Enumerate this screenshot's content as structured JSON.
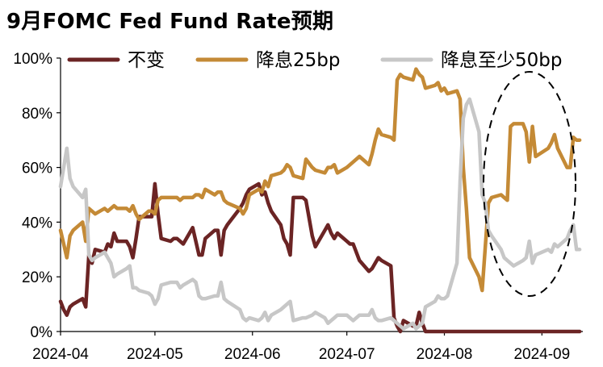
{
  "title": "9月FOMC Fed Fund Rate预期",
  "chart_data": {
    "type": "line",
    "title": "9月FOMC Fed Fund Rate预期",
    "xlabel": "",
    "ylabel": "",
    "x_ticks": [
      "2024-04",
      "2024-05",
      "2024-06",
      "2024-07",
      "2024-08",
      "2024-09"
    ],
    "x_range": [
      "2024-04-01",
      "2024-09-14"
    ],
    "y_ticks": [
      "0%",
      "20%",
      "40%",
      "60%",
      "80%",
      "100%"
    ],
    "ylim": [
      0,
      100
    ],
    "legend_position": "top",
    "dates": [
      "2024-04-01",
      "2024-04-02",
      "2024-04-03",
      "2024-04-04",
      "2024-04-05",
      "2024-04-08",
      "2024-04-09",
      "2024-04-10",
      "2024-04-11",
      "2024-04-12",
      "2024-04-15",
      "2024-04-16",
      "2024-04-17",
      "2024-04-18",
      "2024-04-19",
      "2024-04-22",
      "2024-04-23",
      "2024-04-24",
      "2024-04-25",
      "2024-04-26",
      "2024-04-29",
      "2024-04-30",
      "2024-05-01",
      "2024-05-02",
      "2024-05-03",
      "2024-05-06",
      "2024-05-07",
      "2024-05-08",
      "2024-05-09",
      "2024-05-10",
      "2024-05-13",
      "2024-05-14",
      "2024-05-15",
      "2024-05-16",
      "2024-05-17",
      "2024-05-20",
      "2024-05-21",
      "2024-05-22",
      "2024-05-23",
      "2024-05-24",
      "2024-05-28",
      "2024-05-29",
      "2024-05-30",
      "2024-05-31",
      "2024-06-03",
      "2024-06-04",
      "2024-06-05",
      "2024-06-06",
      "2024-06-07",
      "2024-06-10",
      "2024-06-11",
      "2024-06-12",
      "2024-06-13",
      "2024-06-14",
      "2024-06-17",
      "2024-06-18",
      "2024-06-20",
      "2024-06-21",
      "2024-06-24",
      "2024-06-25",
      "2024-06-26",
      "2024-06-27",
      "2024-06-28",
      "2024-07-01",
      "2024-07-02",
      "2024-07-03",
      "2024-07-05",
      "2024-07-08",
      "2024-07-09",
      "2024-07-10",
      "2024-07-11",
      "2024-07-12",
      "2024-07-15",
      "2024-07-16",
      "2024-07-17",
      "2024-07-18",
      "2024-07-19",
      "2024-07-22",
      "2024-07-23",
      "2024-07-24",
      "2024-07-25",
      "2024-07-26",
      "2024-07-29",
      "2024-07-30",
      "2024-07-31",
      "2024-08-01",
      "2024-08-02",
      "2024-08-05",
      "2024-08-06",
      "2024-08-07",
      "2024-08-08",
      "2024-08-09",
      "2024-08-12",
      "2024-08-13",
      "2024-08-14",
      "2024-08-15",
      "2024-08-16",
      "2024-08-19",
      "2024-08-20",
      "2024-08-21",
      "2024-08-22",
      "2024-08-23",
      "2024-08-26",
      "2024-08-27",
      "2024-08-28",
      "2024-08-29",
      "2024-08-30",
      "2024-09-03",
      "2024-09-04",
      "2024-09-05",
      "2024-09-06",
      "2024-09-09",
      "2024-09-10",
      "2024-09-11",
      "2024-09-12",
      "2024-09-13"
    ],
    "series": [
      {
        "name": "不变",
        "color": "#6b2424",
        "values": [
          11,
          8,
          6,
          9,
          10,
          12,
          9,
          28,
          25,
          30,
          29,
          32,
          31,
          36,
          33,
          33,
          31,
          27,
          34,
          42,
          42,
          42,
          54,
          43,
          34,
          33,
          34,
          34,
          33,
          32,
          38,
          33,
          28,
          28,
          34,
          37,
          37,
          28,
          37,
          39,
          45,
          47,
          50,
          52,
          54,
          50,
          51,
          47,
          44,
          39,
          34,
          32,
          28,
          49,
          49,
          48,
          35,
          31,
          37,
          39,
          36,
          34,
          36,
          33,
          32,
          32,
          26,
          22,
          23,
          25,
          27,
          26,
          24,
          5,
          2,
          0,
          4,
          2,
          2,
          7,
          3,
          0,
          0,
          0,
          0,
          0,
          0,
          0,
          0,
          0,
          0,
          0,
          0,
          0,
          0,
          0,
          0,
          0,
          0,
          0,
          0,
          0,
          0,
          0,
          0,
          0,
          0,
          0,
          0,
          0,
          0,
          0,
          0,
          0,
          0,
          0
        ]
      },
      {
        "name": "降息25bp",
        "color": "#c48a36",
        "values": [
          37,
          32,
          27,
          35,
          37,
          40,
          33,
          45,
          44,
          43,
          45,
          44,
          45,
          46,
          45,
          45,
          44,
          46,
          43,
          41,
          44,
          44,
          43,
          48,
          49,
          49,
          49,
          49,
          48,
          49,
          49,
          50,
          50,
          49,
          52,
          50,
          51,
          51,
          48,
          47,
          45,
          43,
          45,
          50,
          52,
          51,
          55,
          53,
          57,
          58,
          59,
          61,
          60,
          57,
          56,
          63,
          60,
          59,
          58,
          60,
          60,
          61,
          58,
          60,
          61,
          62,
          64,
          61,
          65,
          70,
          74,
          72,
          71,
          70,
          92,
          94,
          93,
          92,
          96,
          94,
          93,
          89,
          90,
          91,
          88,
          89,
          87,
          88,
          85,
          60,
          45,
          27,
          20,
          15,
          31,
          47,
          49,
          50,
          49,
          48,
          75,
          76,
          76,
          73,
          62,
          75,
          64,
          67,
          69,
          72,
          67,
          60,
          60,
          71,
          70,
          70
        ]
      },
      {
        "name": "降息至少50bp",
        "color": "#c7c7c7",
        "values": [
          53,
          60,
          67,
          56,
          53,
          49,
          52,
          28,
          26,
          27,
          29,
          27,
          25,
          20,
          21,
          23,
          24,
          16,
          16,
          15,
          14,
          13,
          10,
          12,
          17,
          18,
          18,
          18,
          16,
          17,
          19,
          18,
          13,
          12,
          12,
          13,
          13,
          18,
          12,
          11,
          8,
          5,
          4,
          5,
          4,
          5,
          7,
          4,
          6,
          8,
          9,
          10,
          11,
          4,
          5,
          5,
          6,
          7,
          5,
          3,
          4,
          5,
          6,
          6,
          5,
          4,
          6,
          6,
          8,
          5,
          4,
          4,
          5,
          4,
          3,
          2,
          1,
          3,
          1,
          2,
          3,
          9,
          11,
          13,
          12,
          12,
          13,
          25,
          55,
          78,
          83,
          85,
          73,
          50,
          47,
          37,
          35,
          30,
          27,
          26,
          25,
          24,
          26,
          27,
          33,
          25,
          28,
          30,
          29,
          32,
          31,
          34,
          37,
          39,
          30,
          30
        ]
      }
    ]
  }
}
